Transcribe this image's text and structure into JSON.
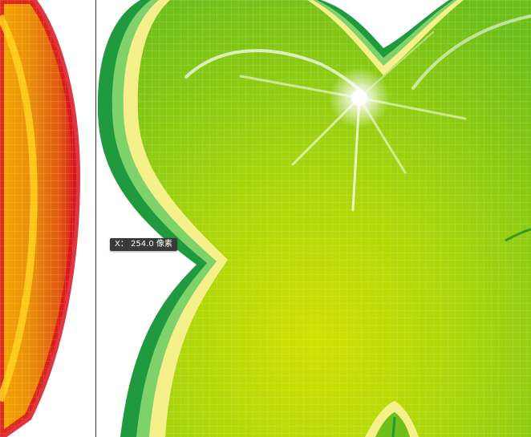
{
  "canvas": {
    "tool": "ruler-measure",
    "tooltip": {
      "axis_label": "X：",
      "value": "254.0",
      "unit": "像素"
    },
    "colors": {
      "guide_line": "#333333",
      "orange_fill": "#e67e0d",
      "red_edge": "#d9141e",
      "green_fill": "#8bcc14",
      "green_center": "#c9df00",
      "green_outline": "#1f9a3e",
      "highlight": "#f9f58a",
      "pixel_grid": "rgba(255,255,255,0.18)"
    },
    "guide_line_visible": true,
    "pixel_grid_visible": true
  }
}
